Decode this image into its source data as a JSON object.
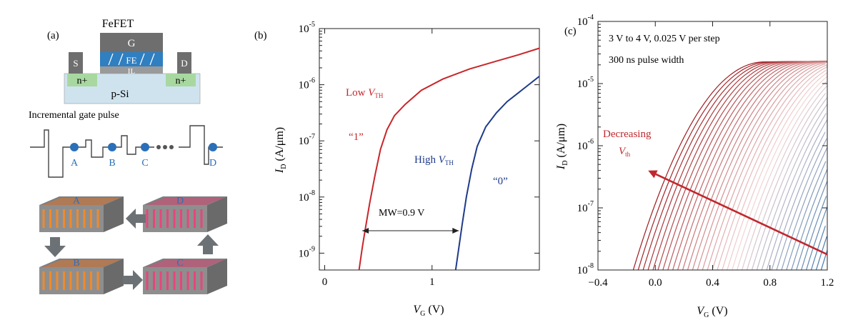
{
  "panel_a": {
    "label": "(a)",
    "device_title": "FeFET",
    "gate": "G",
    "fe": "FE",
    "il": "IL",
    "source": "S",
    "drain": "D",
    "n_plus_left": "n+",
    "n_plus_right": "n+",
    "substrate": "p-Si",
    "pulse_title": "Incremental gate pulse",
    "points": [
      "A",
      "B",
      "C",
      "D"
    ],
    "cubes": [
      "A",
      "D",
      "B",
      "C"
    ],
    "colors": {
      "gate": "#6e6e6e",
      "fe": "#2f7fc1",
      "il": "#9a9a9a",
      "n_plus": "#a8d8a0",
      "substrate": "#cfe3ef",
      "point": "#2a6fb8"
    }
  },
  "chart_data": [
    {
      "type": "line",
      "panel_label": "(b)",
      "xlabel": "V_G (V)",
      "ylabel": "I_D (A/μm)",
      "xlim": [
        -0.05,
        2.0
      ],
      "ylim_log10": [
        -9.3,
        -5.0
      ],
      "yscale": "log",
      "x_ticks": [
        0,
        1
      ],
      "x_tick_labels": [
        "0",
        "1"
      ],
      "y_ticks_log10": [
        -9,
        -8,
        -7,
        -6,
        -5
      ],
      "y_tick_labels": [
        {
          "base": "10",
          "exp": "-9"
        },
        {
          "base": "10",
          "exp": "-8"
        },
        {
          "base": "10",
          "exp": "-7"
        },
        {
          "base": "10",
          "exp": "-6"
        },
        {
          "base": "10",
          "exp": "-5"
        }
      ],
      "series": [
        {
          "color": "#c8262b",
          "x": [
            0.32,
            0.35,
            0.38,
            0.42,
            0.47,
            0.52,
            0.58,
            0.65,
            0.75,
            0.9,
            1.1,
            1.35,
            1.6,
            1.8,
            2.0
          ],
          "log10_y": [
            -9.3,
            -8.9,
            -8.55,
            -8.1,
            -7.6,
            -7.15,
            -6.8,
            -6.55,
            -6.35,
            -6.1,
            -5.9,
            -5.72,
            -5.58,
            -5.47,
            -5.35
          ]
        },
        {
          "color": "#1f3a8a",
          "x": [
            1.22,
            1.25,
            1.28,
            1.32,
            1.37,
            1.42,
            1.5,
            1.6,
            1.7,
            1.8,
            1.9,
            2.0
          ],
          "log10_y": [
            -9.3,
            -8.9,
            -8.5,
            -8.0,
            -7.5,
            -7.1,
            -6.75,
            -6.5,
            -6.3,
            -6.15,
            -6.0,
            -5.85
          ]
        }
      ],
      "annotations": {
        "low_vth": "Low V_TH",
        "high_vth": "High V_TH",
        "state1": "“1”",
        "state0": "“0”",
        "mw": "MW=0.9 V"
      },
      "mw_arrow": {
        "x_from": 0.35,
        "x_to": 1.25,
        "log10_y": -8.6
      }
    },
    {
      "type": "line",
      "panel_label": "(c)",
      "xlabel": "V_G (V)",
      "ylabel": "I_D (A/μm)",
      "xlim": [
        -0.4,
        1.2
      ],
      "ylim_log10": [
        -8,
        -4
      ],
      "yscale": "log",
      "x_ticks": [
        -0.4,
        0.0,
        0.4,
        0.8,
        1.2
      ],
      "x_tick_labels": [
        "−0.4",
        "0.0",
        "0.4",
        "0.8",
        "1.2"
      ],
      "y_ticks_log10": [
        -8,
        -7,
        -6,
        -5,
        -4
      ],
      "y_tick_labels": [
        {
          "base": "10",
          "exp": "-8"
        },
        {
          "base": "10",
          "exp": "-7"
        },
        {
          "base": "10",
          "exp": "-6"
        },
        {
          "base": "10",
          "exp": "-5"
        },
        {
          "base": "10",
          "exp": "-4"
        }
      ],
      "family": {
        "count": 41,
        "first_onset_x": -0.18,
        "last_onset_x": 1.2,
        "log10_saturation": -4.65,
        "color_start": "#9e1b1f",
        "color_mid": "#f2d5d5",
        "color_end": "#2f6fa8"
      },
      "annotations": {
        "line1": "3 V to 4 V, 0.025 V per step",
        "line2": "300 ns pulse width",
        "decreasing": "Decreasing",
        "vth": "V_th"
      },
      "arrow": {
        "x_from": 1.2,
        "log10_from": -7.75,
        "x_to": -0.05,
        "log10_to": -6.4,
        "color": "#c0282d"
      }
    }
  ]
}
